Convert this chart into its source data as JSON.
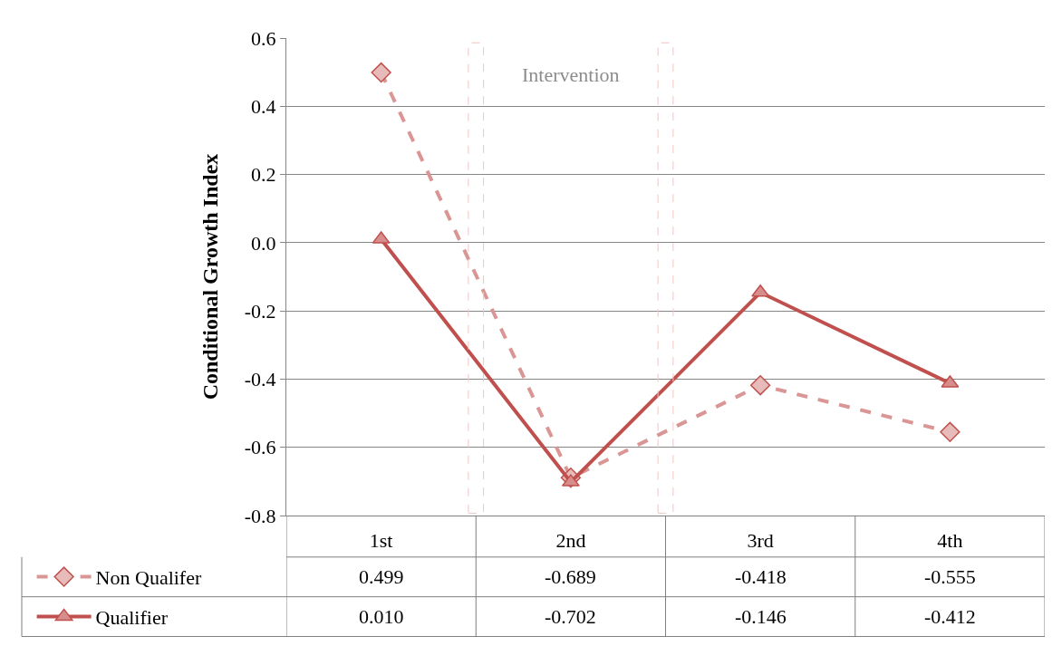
{
  "chart_data": {
    "type": "line",
    "ylabel": "Conditional Growth Index",
    "categories": [
      "1st",
      "2nd",
      "3rd",
      "4th"
    ],
    "series": [
      {
        "name": "Non Qualifer",
        "color": "#d99694",
        "marker": "diamond",
        "line_style": "dashed",
        "values": [
          0.499,
          -0.689,
          -0.418,
          -0.555
        ],
        "value_labels": [
          "0.499",
          "-0.689",
          "-0.418",
          "-0.555"
        ]
      },
      {
        "name": "Qualifier",
        "color": "#c0504d",
        "marker": "triangle",
        "line_style": "solid",
        "values": [
          0.01,
          -0.702,
          -0.146,
          -0.412
        ],
        "value_labels": [
          "0.010",
          "-0.702",
          "-0.146",
          "-0.412"
        ]
      }
    ],
    "ylim": [
      -0.8,
      0.6
    ],
    "yticks": [
      -0.8,
      -0.6,
      -0.4,
      -0.2,
      {
        "value": 0,
        "label": "0.0"
      },
      0.2,
      0.4,
      0.6
    ],
    "grid": "y",
    "legend": "bottom left",
    "annotations": [
      "Intervention"
    ]
  }
}
